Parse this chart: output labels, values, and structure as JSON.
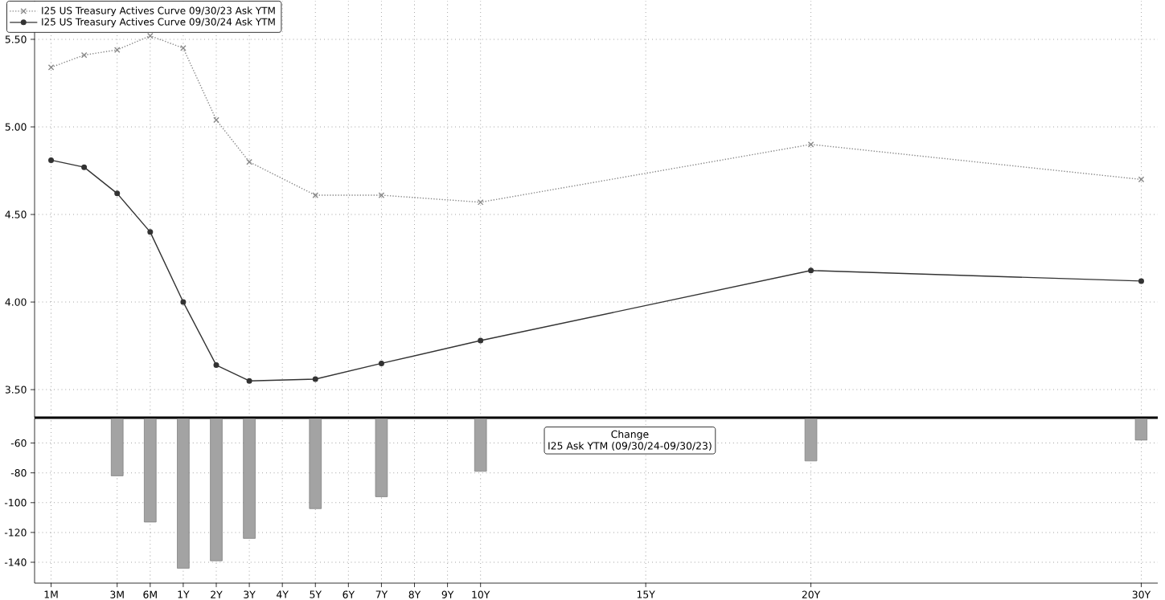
{
  "chart_data": [
    {
      "type": "line",
      "categories": [
        null,
        null,
        null,
        null,
        null,
        null,
        null,
        null,
        null,
        null,
        null,
        null,
        null,
        null,
        null,
        null,
        null,
        null,
        null,
        null,
        null,
        null,
        null,
        null,
        null,
        null,
        null,
        null,
        null,
        null,
        null,
        null,
        null,
        null
      ],
      "series": [
        {
          "name": "I25 US Treasury Actives Curve 09/30/23 Ask YTM",
          "color": "#8a8a8a",
          "marker": "cross",
          "line_style": "dotted",
          "values": [
            5.34,
            5.41,
            5.44,
            5.52,
            5.45,
            5.04,
            4.8,
            null,
            4.61,
            null,
            4.61,
            null,
            null,
            4.57,
            null,
            null,
            null,
            null,
            null,
            null,
            null,
            null,
            null,
            4.9,
            null,
            null,
            null,
            null,
            null,
            null,
            null,
            null,
            null,
            4.7
          ]
        },
        {
          "name": "I25 US Treasury Actives Curve 09/30/24 Ask YTM",
          "color": "#333333",
          "marker": "circle",
          "line_style": "solid",
          "values": [
            4.81,
            4.77,
            4.62,
            4.4,
            4.0,
            3.64,
            3.55,
            null,
            3.56,
            null,
            3.65,
            null,
            null,
            3.78,
            null,
            null,
            null,
            null,
            null,
            null,
            null,
            null,
            null,
            4.18,
            null,
            null,
            null,
            null,
            null,
            null,
            null,
            null,
            null,
            4.12
          ]
        }
      ],
      "ylim": [
        3.34,
        5.72
      ],
      "yticks": [
        {
          "value": 3.5,
          "label": "3.50"
        },
        {
          "value": 4.0,
          "label": "4.00"
        },
        {
          "value": 4.5,
          "label": "4.50"
        },
        {
          "value": 5.0,
          "label": "5.00"
        },
        {
          "value": 5.5,
          "label": "5.50"
        }
      ],
      "grid": true,
      "legend": "top left",
      "tick_labels": "y"
    },
    {
      "type": "bar",
      "categories": [
        "1M",
        null,
        "3M",
        "6M",
        "1Y",
        "2Y",
        "3Y",
        "4Y",
        "5Y",
        "6Y",
        "7Y",
        "8Y",
        "9Y",
        "10Y",
        null,
        null,
        null,
        null,
        "15Y",
        null,
        null,
        null,
        null,
        "20Y",
        null,
        null,
        null,
        null,
        null,
        null,
        null,
        null,
        null,
        "30Y"
      ],
      "values": [
        null,
        null,
        -82,
        -113,
        -144,
        -139,
        -124,
        null,
        -104,
        null,
        -96,
        null,
        null,
        -79,
        null,
        null,
        null,
        null,
        null,
        null,
        null,
        null,
        null,
        -72,
        null,
        null,
        null,
        null,
        null,
        null,
        null,
        null,
        null,
        -58
      ],
      "color": "#a3a3a3",
      "ylim": [
        -154,
        -43.5
      ],
      "yticks": [
        -140,
        -120,
        -100,
        -80,
        -60
      ],
      "grid": true,
      "annotations": [
        "Change",
        "I25 Ask YTM (09/30/24-09/30/23)"
      ]
    }
  ]
}
